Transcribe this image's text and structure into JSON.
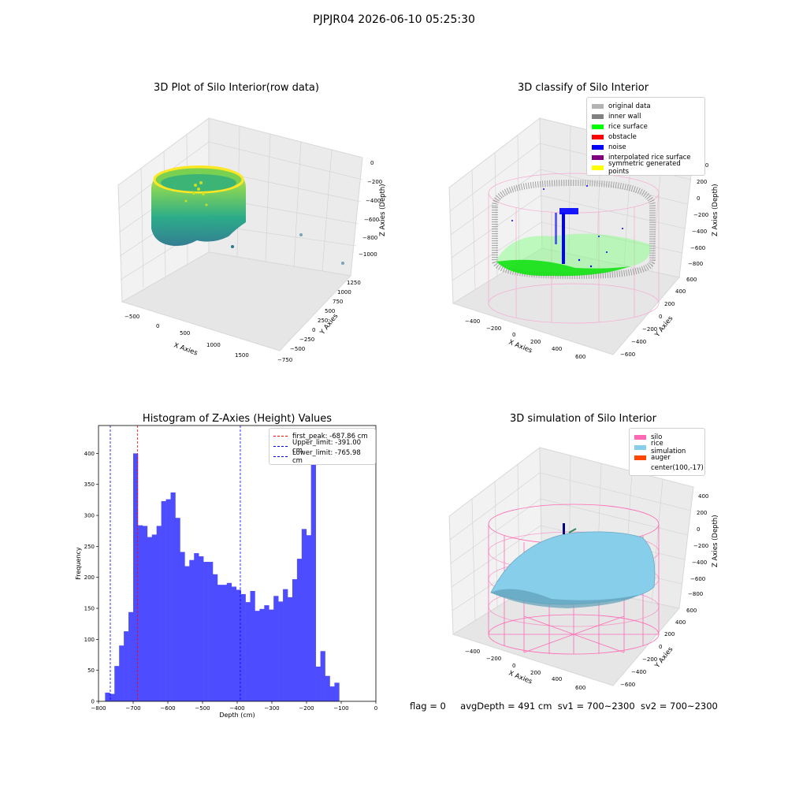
{
  "figure": {
    "suptitle": "PJPJR04 2026-06-10 05:25:30",
    "footer": {
      "flag": "flag = 0",
      "avg_depth": "avgDepth = 491 cm",
      "sv1": "sv1 = 700~2300",
      "sv2": "sv2 = 700~2300"
    }
  },
  "chart_data": [
    {
      "type": "scatter",
      "title": "3D Plot of Silo Interior(row data)",
      "xlabel": "X Axies",
      "ylabel": "Y Axies",
      "zlabel": "Z Axies (Depth)",
      "x_ticks": [
        "−500",
        "0",
        "500",
        "1000",
        "1500"
      ],
      "y_ticks": [
        "−750",
        "−500",
        "−250",
        "0",
        "250",
        "500",
        "750",
        "1000",
        "1250"
      ],
      "z_ticks": [
        "0",
        "−200",
        "−400",
        "−600",
        "−800",
        "−1000"
      ],
      "colormap": "viridis",
      "grid": true
    },
    {
      "type": "scatter",
      "title": "3D classify of Silo Interior",
      "xlabel": "X Axies",
      "ylabel": "Y Axies",
      "zlabel": "Z Axies (Depth)",
      "x_ticks": [
        "−400",
        "−200",
        "0",
        "200",
        "400",
        "600"
      ],
      "y_ticks": [
        "−600",
        "−400",
        "−200",
        "0",
        "200",
        "400",
        "600"
      ],
      "z_ticks": [
        "400",
        "200",
        "0",
        "−200",
        "−400",
        "−600",
        "−800"
      ],
      "legend": [
        {
          "label": "original data",
          "color": "#b3b3b3"
        },
        {
          "label": "inner wall",
          "color": "#808080"
        },
        {
          "label": "rice surface",
          "color": "#00ff00"
        },
        {
          "label": "obstacle",
          "color": "#ff0000"
        },
        {
          "label": "noise",
          "color": "#0000ff"
        },
        {
          "label": "interpolated rice surface",
          "color": "#800080"
        },
        {
          "label": "symmetric generated points",
          "color": "#ffff00"
        }
      ],
      "legend_position": "top-right",
      "grid": true
    },
    {
      "type": "bar",
      "title": "Histogram of Z-Axies (Height) Values",
      "xlabel": "Depth (cm)",
      "ylabel": "Frequency",
      "xlim": [
        -800,
        0
      ],
      "ylim": [
        0,
        445
      ],
      "x_ticks": [
        "−800",
        "−700",
        "−600",
        "−500",
        "−400",
        "−300",
        "−200",
        "−100",
        "0"
      ],
      "y_ticks": [
        "0",
        "50",
        "100",
        "150",
        "200",
        "250",
        "300",
        "350",
        "400"
      ],
      "bin_width": 13.5,
      "bin_start": -781,
      "counts": [
        14,
        12,
        57,
        90,
        113,
        144,
        400,
        284,
        283,
        265,
        269,
        283,
        323,
        326,
        337,
        296,
        241,
        218,
        228,
        239,
        234,
        225,
        225,
        205,
        188,
        188,
        191,
        185,
        180,
        173,
        160,
        178,
        146,
        149,
        155,
        148,
        170,
        161,
        181,
        168,
        197,
        230,
        278,
        268,
        421,
        56,
        81,
        41,
        24,
        30
      ],
      "bar_color": "#4d4dff",
      "vlines": [
        {
          "label": "first_peak: -687.86 cm",
          "x": -687.86,
          "color": "#ff0000"
        },
        {
          "label": "Upper_limit: -391.00 cm",
          "x": -391.0,
          "color": "#0000ff"
        },
        {
          "label": "Lower_limit: -765.98 cm",
          "x": -765.98,
          "color": "#0000ff"
        }
      ],
      "legend_position": "top-right",
      "grid": false
    },
    {
      "type": "scatter",
      "title": "3D simulation of Silo Interior",
      "xlabel": "X Axies",
      "ylabel": "Y Axies",
      "zlabel": "Z Axies (Depth)",
      "x_ticks": [
        "−400",
        "−200",
        "0",
        "200",
        "400",
        "600"
      ],
      "y_ticks": [
        "−600",
        "−400",
        "−200",
        "0",
        "200",
        "400",
        "600"
      ],
      "z_ticks": [
        "400",
        "200",
        "0",
        "−200",
        "−400",
        "−600",
        "−800"
      ],
      "legend": [
        {
          "label": "silo",
          "color": "#ff69b4"
        },
        {
          "label": "rice simulation",
          "color": "#87ceeb"
        },
        {
          "label": "auger",
          "color": "#ff4500"
        },
        {
          "label": "center(100,-17)",
          "color": ""
        }
      ],
      "legend_position": "top-right",
      "grid": true
    }
  ]
}
